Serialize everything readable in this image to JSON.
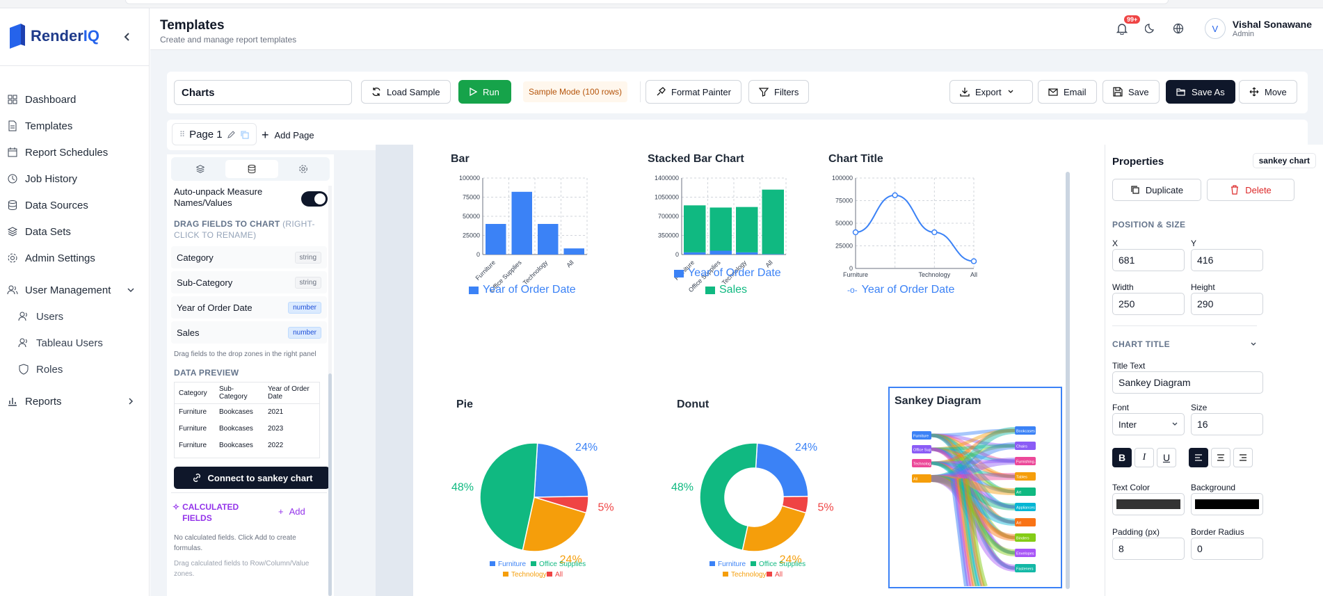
{
  "app": {
    "logo": "RenderIQ",
    "logo_a": "Render",
    "logo_b": "IQ"
  },
  "header": {
    "title": "Templates",
    "subtitle": "Create and manage report templates",
    "notif_badge": "99+",
    "user_name": "Vishal Sonawane",
    "user_role": "Admin",
    "avatar_letter": "V"
  },
  "sidebar": {
    "items": [
      {
        "label": "Dashboard"
      },
      {
        "label": "Templates"
      },
      {
        "label": "Report Schedules"
      },
      {
        "label": "Job History"
      },
      {
        "label": "Data Sources"
      },
      {
        "label": "Data Sets"
      },
      {
        "label": "Admin Settings"
      },
      {
        "label": "User Management"
      },
      {
        "label": "Users"
      },
      {
        "label": "Tableau Users"
      },
      {
        "label": "Roles"
      },
      {
        "label": "Reports"
      }
    ]
  },
  "toolbar": {
    "name_value": "Charts",
    "load_sample": "Load Sample",
    "run": "Run",
    "sample_mode": "Sample Mode (100 rows)",
    "format_painter": "Format Painter",
    "filters": "Filters",
    "export": "Export",
    "email": "Email",
    "save": "Save",
    "save_as": "Save As",
    "move": "Move"
  },
  "pages": {
    "tab": "Page 1",
    "add": "Add Page"
  },
  "leftpanel": {
    "toggle_label": "Auto-unpack Measure Names/Values",
    "drag_heading": "DRAG FIELDS TO CHART",
    "drag_heading_hint": "(RIGHT-CLICK TO RENAME)",
    "fields": [
      {
        "name": "Category",
        "type": "string"
      },
      {
        "name": "Sub-Category",
        "type": "string"
      },
      {
        "name": "Year of Order Date",
        "type": "number"
      },
      {
        "name": "Sales",
        "type": "number"
      }
    ],
    "drag_hint": "Drag fields to the drop zones in the right panel",
    "preview_heading": "DATA PREVIEW",
    "preview_cols": [
      "Category",
      "Sub-Category",
      "Year of Order Date"
    ],
    "preview_rows": [
      [
        "Furniture",
        "Bookcases",
        "2021"
      ],
      [
        "Furniture",
        "Bookcases",
        "2023"
      ],
      [
        "Furniture",
        "Bookcases",
        "2022"
      ]
    ],
    "connect": "Connect to sankey chart",
    "calc_heading": "CALCULATED FIELDS",
    "calc_add": "Add",
    "calc_hint1": "No calculated fields. Click Add to create formulas.",
    "calc_hint2": "Drag calculated fields to Row/Column/Value zones."
  },
  "chart_data": [
    {
      "type": "bar",
      "title": "Bar",
      "categories": [
        "Furniture",
        "Office Supplies",
        "Technology",
        "All"
      ],
      "values": [
        40000,
        82000,
        40000,
        8000
      ],
      "ylim": [
        0,
        100000
      ],
      "yticks": [
        "100000",
        "75000",
        "50000",
        "25000",
        "0"
      ],
      "legend": [
        "Year of Order Date"
      ],
      "color": "#3b82f6"
    },
    {
      "type": "bar",
      "title": "Stacked Bar Chart",
      "categories": [
        "Furniture",
        "Office Supplies",
        "Technology",
        "All"
      ],
      "series": [
        {
          "name": "Year of Order Date",
          "values": [
            40000,
            70000,
            40000,
            8000
          ],
          "color": "#3b82f6"
        },
        {
          "name": "Sales",
          "values": [
            860000,
            790000,
            830000,
            1180000
          ],
          "color": "#10b981"
        }
      ],
      "ylim": [
        0,
        1400000
      ],
      "yticks": [
        "1400000",
        "1050000",
        "700000",
        "350000",
        "0"
      ]
    },
    {
      "type": "line",
      "title": "Chart Title",
      "categories": [
        "Furniture",
        "Office Supplies",
        "Technology",
        "All"
      ],
      "xticks": [
        "Furniture",
        "Technology",
        "All"
      ],
      "values": [
        40000,
        81000,
        40000,
        8000
      ],
      "ylim": [
        0,
        100000
      ],
      "yticks": [
        "100000",
        "75000",
        "50000",
        "25000",
        "0"
      ],
      "legend": [
        "Year of Order Date"
      ],
      "color": "#3b82f6"
    },
    {
      "type": "pie",
      "title": "Pie",
      "labels": [
        "Furniture",
        "Office Supplies",
        "Technology",
        "All"
      ],
      "values": [
        24,
        48,
        24,
        5
      ],
      "pct_labels": [
        "24%",
        "48%",
        "24%",
        "5%"
      ],
      "colors": [
        "#3b82f6",
        "#10b981",
        "#f59e0b",
        "#ef4444"
      ]
    },
    {
      "type": "pie",
      "title": "Donut",
      "labels": [
        "Furniture",
        "Office Supplies",
        "Technology",
        "All"
      ],
      "values": [
        24,
        48,
        24,
        5
      ],
      "pct_labels": [
        "24%",
        "48%",
        "24%",
        "5%"
      ],
      "colors": [
        "#3b82f6",
        "#10b981",
        "#f59e0b",
        "#ef4444"
      ]
    },
    {
      "type": "sankey",
      "title": "Sankey Diagram",
      "sources": [
        "Furniture",
        "Office Sup...",
        "Technolog...",
        "All"
      ],
      "targets": [
        "Bookcases",
        "Chairs",
        "Furnishing...",
        "Tables",
        "Art",
        "Appliances",
        "Art",
        "Binders",
        "Envelopes",
        "Fasteners"
      ]
    }
  ],
  "props": {
    "heading": "Properties",
    "chip": "sankey chart",
    "duplicate": "Duplicate",
    "delete": "Delete",
    "pos_heading": "POSITION & SIZE",
    "x_label": "X",
    "x_value": "681",
    "y_label": "Y",
    "y_value": "416",
    "w_label": "Width",
    "w_value": "250",
    "h_label": "Height",
    "h_value": "290",
    "title_heading": "CHART TITLE",
    "title_text_label": "Title Text",
    "title_text": "Sankey Diagram",
    "font_label": "Font",
    "font_value": "Inter",
    "size_label": "Size",
    "size_value": "16",
    "text_color_label": "Text Color",
    "background_label": "Background",
    "padding_label": "Padding (px)",
    "padding_value": "8",
    "radius_label": "Border Radius",
    "radius_value": "0"
  }
}
